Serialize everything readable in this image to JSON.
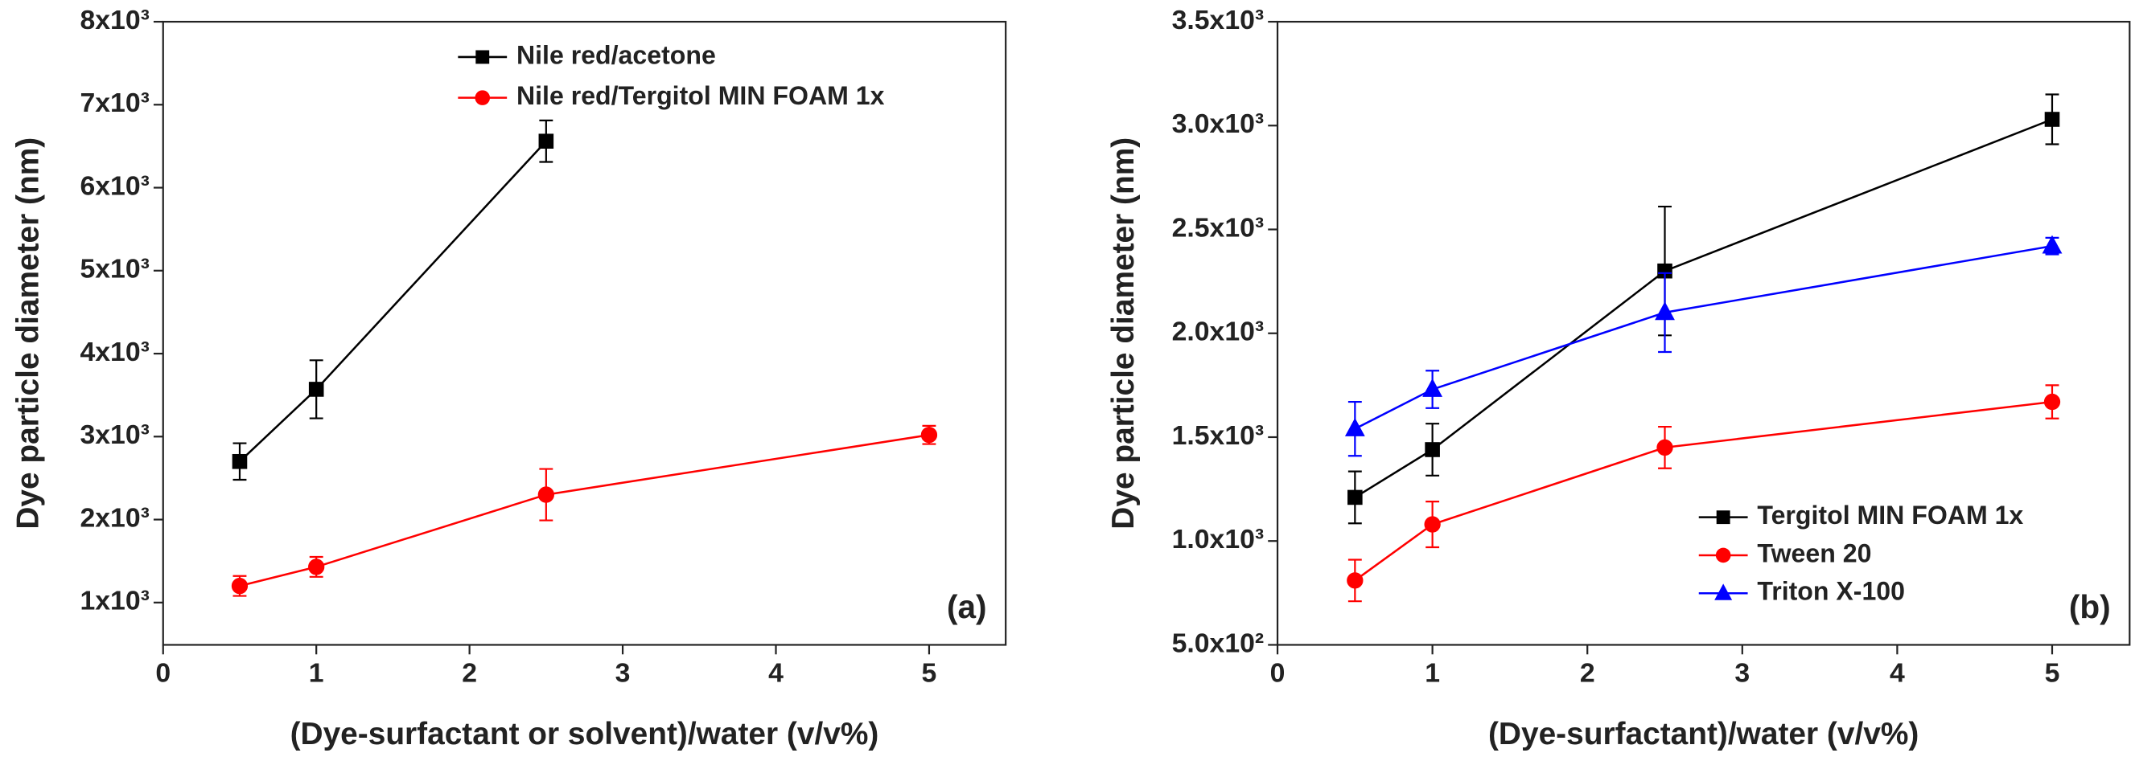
{
  "chart_data": [
    {
      "type": "line",
      "annotation": "(a)",
      "x_label": "(Dye-surfactant or solvent)/water (v/v%)",
      "y_label": "Dye particle diameter (nm)",
      "xlim": [
        0,
        5.5
      ],
      "xticks": [
        0,
        1,
        2,
        3,
        4,
        5
      ],
      "ylim": [
        490,
        8000
      ],
      "yticks": [
        {
          "value": 1000,
          "label": "1x10³"
        },
        {
          "value": 2000,
          "label": "2x10³"
        },
        {
          "value": 3000,
          "label": "3x10³"
        },
        {
          "value": 4000,
          "label": "4x10³"
        },
        {
          "value": 5000,
          "label": "5x10³"
        },
        {
          "value": 6000,
          "label": "6x10³"
        },
        {
          "value": 7000,
          "label": "7x10³"
        },
        {
          "value": 8000,
          "label": "8x10³"
        }
      ],
      "legend": "upper center",
      "series": [
        {
          "name": "Nile red/acetone",
          "color": "#000000",
          "marker": "square",
          "x": [
            0.5,
            1,
            2.5
          ],
          "values": [
            2700,
            3570,
            6560
          ],
          "errors": [
            220,
            350,
            250
          ]
        },
        {
          "name": "Nile red/Tergitol MIN FOAM 1x",
          "color": "#ff0000",
          "marker": "circle",
          "x": [
            0.5,
            1,
            2.5,
            5
          ],
          "values": [
            1200,
            1430,
            2300,
            3020
          ],
          "errors": [
            120,
            120,
            310,
            110
          ]
        }
      ]
    },
    {
      "type": "line",
      "annotation": "(b)",
      "x_label": "(Dye-surfactant)/water (v/v%)",
      "y_label": "Dye particle diameter (nm)",
      "xlim": [
        0,
        5.5
      ],
      "xticks": [
        0,
        1,
        2,
        3,
        4,
        5
      ],
      "ylim": [
        500,
        3500
      ],
      "yticks": [
        {
          "value": 500,
          "label": "5.0x10²"
        },
        {
          "value": 1000,
          "label": "1.0x10³"
        },
        {
          "value": 1500,
          "label": "1.5x10³"
        },
        {
          "value": 2000,
          "label": "2.0x10³"
        },
        {
          "value": 2500,
          "label": "2.5x10³"
        },
        {
          "value": 3000,
          "label": "3.0x10³"
        },
        {
          "value": 3500,
          "label": "3.5x10³"
        }
      ],
      "legend": "lower right",
      "series": [
        {
          "name": "Tergitol MIN FOAM 1x",
          "color": "#000000",
          "marker": "square",
          "x": [
            0.5,
            1,
            2.5,
            5
          ],
          "values": [
            1210,
            1440,
            2300,
            3030
          ],
          "errors": [
            125,
            125,
            310,
            120
          ]
        },
        {
          "name": "Tween 20",
          "color": "#ff0000",
          "marker": "circle",
          "x": [
            0.5,
            1,
            2.5,
            5
          ],
          "values": [
            810,
            1080,
            1450,
            1670
          ],
          "errors": [
            100,
            110,
            100,
            80
          ]
        },
        {
          "name": "Triton X-100",
          "color": "#0000ff",
          "marker": "triangle",
          "x": [
            0.5,
            1,
            2.5,
            5
          ],
          "values": [
            1540,
            1730,
            2100,
            2420
          ],
          "errors": [
            130,
            90,
            190,
            40
          ]
        }
      ]
    }
  ]
}
